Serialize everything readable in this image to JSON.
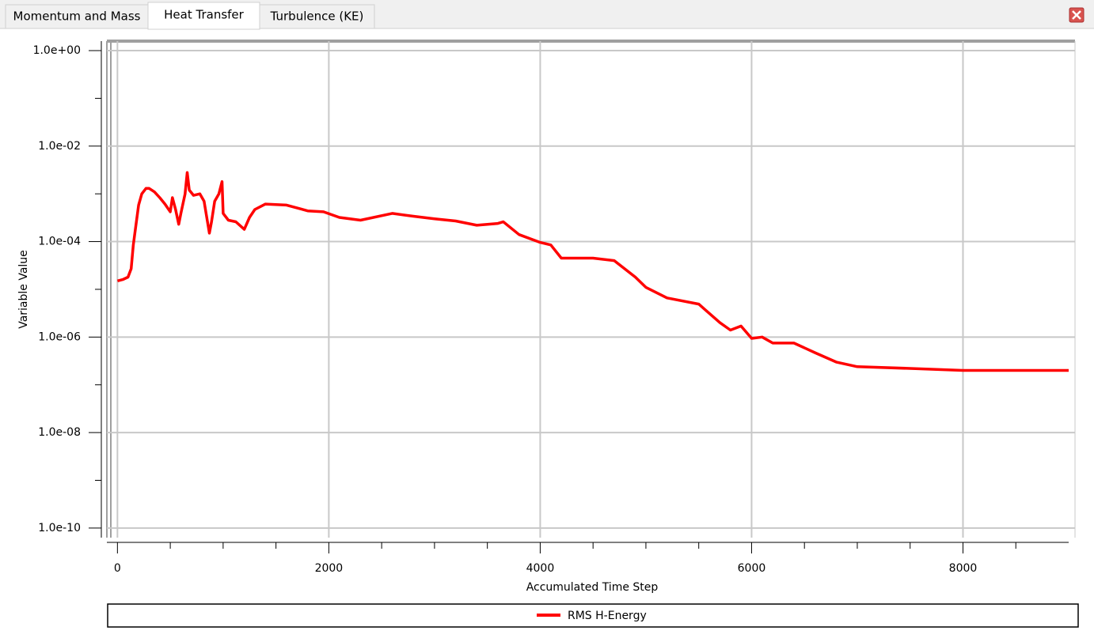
{
  "tabs": [
    "Momentum and Mass",
    "Heat Transfer",
    "Turbulence (KE)"
  ],
  "active_tab": 1,
  "chart_data": {
    "type": "line",
    "xlabel": "Accumulated Time Step",
    "ylabel": "Variable Value",
    "log_y": true,
    "grid": true,
    "xlim": [
      -100,
      9000
    ],
    "ylim": [
      6.3e-11,
      1.58
    ],
    "xticks": [
      0,
      2000,
      4000,
      6000,
      8000
    ],
    "xminorticks": [
      500,
      1000,
      1500,
      2500,
      3000,
      3500,
      4500,
      5000,
      5500,
      6500,
      7000,
      7500,
      8500
    ],
    "yticks": [
      {
        "value": 1,
        "label": "1.0e+00"
      },
      {
        "value": 0.01,
        "label": "1.0e-02"
      },
      {
        "value": 0.0001,
        "label": "1.0e-04"
      },
      {
        "value": 1e-06,
        "label": "1.0e-06"
      },
      {
        "value": 1e-08,
        "label": "1.0e-08"
      },
      {
        "value": 1e-10,
        "label": "1.0e-10"
      }
    ],
    "yminorticks": [
      0.1,
      0.001,
      1e-05,
      1e-07,
      1e-09
    ],
    "x": [
      0,
      50,
      100,
      130,
      150,
      170,
      200,
      230,
      270,
      300,
      350,
      400,
      450,
      500,
      520,
      550,
      580,
      600,
      640,
      660,
      680,
      720,
      780,
      820,
      870,
      890,
      920,
      960,
      990,
      1000,
      1050,
      1120,
      1200,
      1250,
      1300,
      1400,
      1600,
      1800,
      1950,
      2100,
      2300,
      2600,
      2800,
      3000,
      3200,
      3400,
      3600,
      3650,
      3800,
      4000,
      4100,
      4200,
      4500,
      4700,
      4900,
      5000,
      5200,
      5500,
      5700,
      5800,
      5900,
      6000,
      6100,
      6200,
      6400,
      6600,
      6800,
      7000,
      7500,
      8000,
      9000
    ],
    "series": [
      {
        "name": "RMS H-Energy",
        "color": "#ff0000",
        "values": [
          1.5e-05,
          1.6e-05,
          1.8e-05,
          2.7e-05,
          8.5e-05,
          0.00018,
          0.00058,
          0.001,
          0.0013,
          0.0013,
          0.0011,
          0.00083,
          0.00061,
          0.00042,
          0.00083,
          0.00047,
          0.00023,
          0.00039,
          0.001,
          0.0028,
          0.0012,
          0.00093,
          0.001,
          0.0007,
          0.00015,
          0.00026,
          0.0007,
          0.001,
          0.0018,
          0.00039,
          0.00028,
          0.00026,
          0.00018,
          0.00032,
          0.00047,
          0.00061,
          0.00058,
          0.00044,
          0.00042,
          0.00032,
          0.00028,
          0.00039,
          0.00034,
          0.0003,
          0.00027,
          0.00022,
          0.00024,
          0.00026,
          0.00014,
          9.6e-05,
          8.5e-05,
          4.5e-05,
          4.5e-05,
          4e-05,
          1.8e-05,
          1.1e-05,
          6.6e-06,
          4.9e-06,
          2e-06,
          1.4e-06,
          1.7e-06,
          9.4e-07,
          1e-06,
          7.5e-07,
          7.5e-07,
          4.7e-07,
          3e-07,
          2.4e-07,
          2.2e-07,
          2e-07,
          2e-07
        ]
      }
    ]
  }
}
